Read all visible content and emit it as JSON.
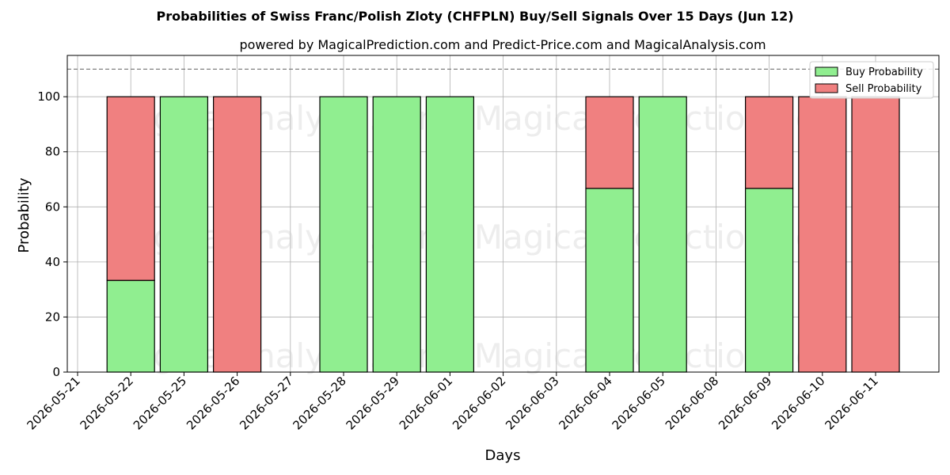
{
  "chart_data": {
    "type": "bar",
    "stacked": true,
    "title": "Probabilities of Swiss Franc/Polish Zloty (CHFPLN) Buy/Sell Signals Over 15 Days (Jun 12)",
    "subtitle": "powered by MagicalPrediction.com and Predict-Price.com and MagicalAnalysis.com",
    "xlabel": "Days",
    "ylabel": "Probability",
    "ylim": [
      0,
      115
    ],
    "yticks": [
      0,
      20,
      40,
      60,
      80,
      100
    ],
    "reference_line": 110,
    "grid": true,
    "legend_position": "top-right",
    "categories": [
      "2026-05-21",
      "2026-05-22",
      "2026-05-25",
      "2026-05-26",
      "2026-05-27",
      "2026-05-28",
      "2026-05-29",
      "2026-06-01",
      "2026-06-02",
      "2026-06-03",
      "2026-06-04",
      "2026-06-05",
      "2026-06-08",
      "2026-06-09",
      "2026-06-10",
      "2026-06-11"
    ],
    "series": [
      {
        "name": "Buy Probability",
        "color": "#90ee90",
        "values": [
          null,
          33.3,
          100,
          0,
          null,
          100,
          100,
          100,
          null,
          null,
          66.7,
          100,
          null,
          66.7,
          0,
          0
        ]
      },
      {
        "name": "Sell Probability",
        "color": "#f08080",
        "values": [
          null,
          66.7,
          0,
          100,
          null,
          0,
          0,
          0,
          null,
          null,
          33.3,
          0,
          null,
          33.3,
          100,
          100
        ]
      }
    ],
    "watermarks": [
      "MagicalAnalysis.com",
      "MagicalPrediction.com",
      "MagicalAnalysis.com",
      "MagicalPrediction.com",
      "MagicalAnalysis.com",
      "MagicalPrediction.com"
    ]
  }
}
